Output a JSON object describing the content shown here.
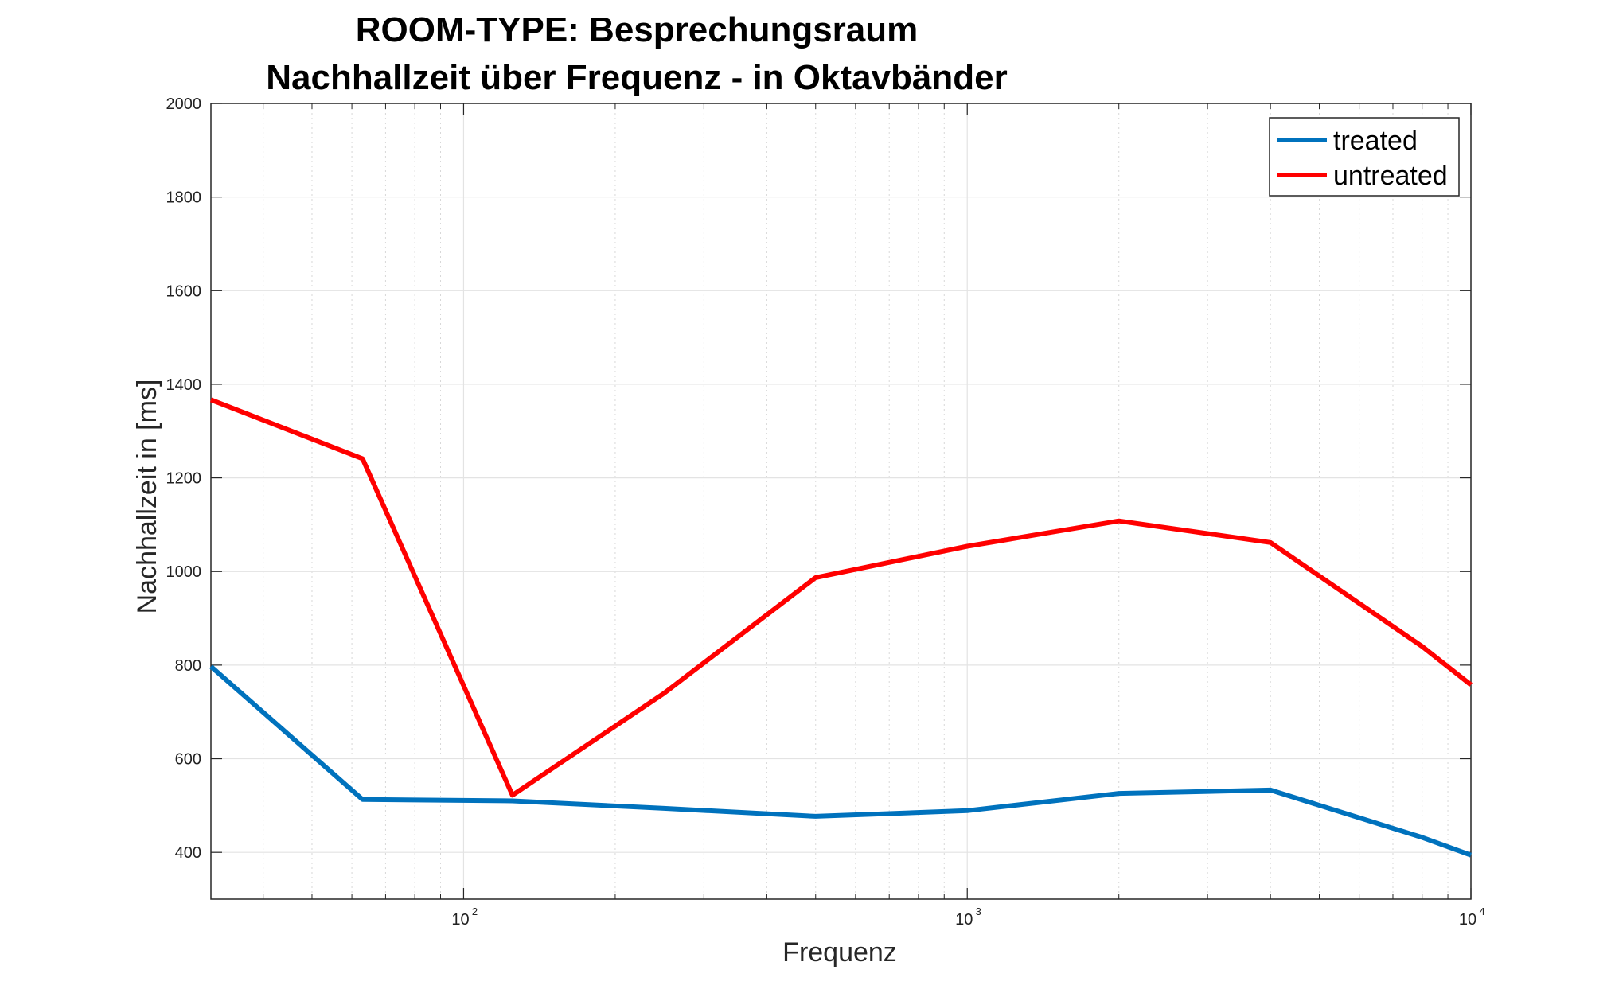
{
  "chart_data": {
    "type": "line",
    "title": [
      "ROOM-TYPE: Besprechungsraum",
      "Nachhallzeit über Frequenz - in Oktavbänder"
    ],
    "xlabel": "Frequenz",
    "ylabel": "Nachhallzeit in [ms]",
    "xscale": "log",
    "xlim": [
      31.5,
      10000
    ],
    "ylim": [
      300,
      2000
    ],
    "yticks": [
      400,
      600,
      800,
      1000,
      1200,
      1400,
      1600,
      1800,
      2000
    ],
    "xticks": [
      {
        "value": 100,
        "base": "10",
        "exp": "2"
      },
      {
        "value": 1000,
        "base": "10",
        "exp": "3"
      },
      {
        "value": 10000,
        "base": "10",
        "exp": "4"
      }
    ],
    "grid": true,
    "legend_position": "top-right",
    "x": [
      31.5,
      63,
      125,
      250,
      500,
      1000,
      2000,
      4000,
      8000,
      10000
    ],
    "series": [
      {
        "name": "treated",
        "color": "#0072BD",
        "values": [
          797,
          513,
          510,
          494,
          477,
          489,
          526,
          533,
          432,
          394
        ]
      },
      {
        "name": "untreated",
        "color": "#FF0000",
        "values": [
          1367,
          1241,
          522,
          740,
          987,
          1054,
          1108,
          1062,
          840,
          758
        ]
      }
    ]
  }
}
